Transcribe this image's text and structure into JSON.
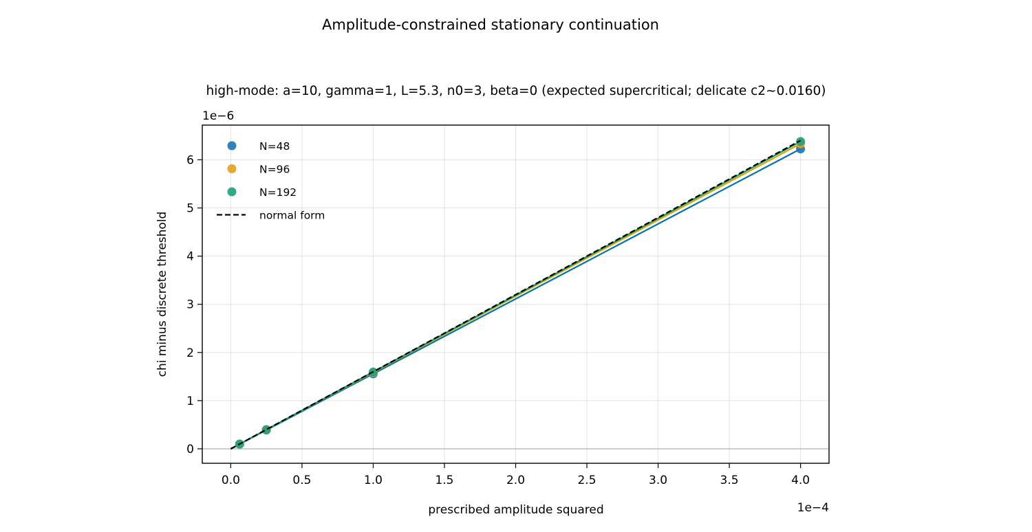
{
  "figure": {
    "suptitle": "Amplitude-constrained stationary continuation"
  },
  "chart_data": {
    "type": "scatter",
    "title": "high-mode: a=10, gamma=1, L=5.3, n0=3, beta=0 (expected supercritical; delicate c2~0.0160)",
    "xlabel": "prescribed amplitude squared",
    "ylabel": "chi minus discrete threshold",
    "x_offset_text": "1e−4",
    "y_offset_text": "1e−6",
    "x_scale": 0.0001,
    "y_scale": 1e-06,
    "xlim": [
      -0.2,
      4.2
    ],
    "ylim": [
      -0.3,
      6.72
    ],
    "x_ticks": [
      0.0,
      0.5,
      1.0,
      1.5,
      2.0,
      2.5,
      3.0,
      3.5,
      4.0
    ],
    "x_tick_labels": [
      "0.0",
      "0.5",
      "1.0",
      "1.5",
      "2.0",
      "2.5",
      "3.0",
      "3.5",
      "4.0"
    ],
    "y_ticks": [
      0,
      1,
      2,
      3,
      4,
      5,
      6
    ],
    "y_tick_labels": [
      "0",
      "1",
      "2",
      "3",
      "4",
      "5",
      "6"
    ],
    "grid": true,
    "zero_line": true,
    "legend_position": "upper-left",
    "series": [
      {
        "name": "N=48",
        "color": "#1f77b4",
        "line_color": "#0072b2",
        "x": [
          0.0625,
          0.25,
          1.0,
          4.0
        ],
        "y": [
          0.097,
          0.389,
          1.556,
          6.225
        ]
      },
      {
        "name": "N=96",
        "color": "#e6a023",
        "line_color": "#e69f00",
        "x": [
          0.0625,
          0.25,
          1.0,
          4.0
        ],
        "y": [
          0.099,
          0.396,
          1.584,
          6.335
        ]
      },
      {
        "name": "N=192",
        "color": "#1fa37c",
        "line_color": "#009e73",
        "x": [
          0.0625,
          0.25,
          1.0,
          4.0
        ],
        "y": [
          0.0997,
          0.399,
          1.595,
          6.38
        ]
      }
    ],
    "reference_line": {
      "name": "normal form",
      "color": "#000000",
      "style": "dashed",
      "x": [
        0.0,
        4.0
      ],
      "y": [
        0.0,
        6.4
      ]
    }
  }
}
